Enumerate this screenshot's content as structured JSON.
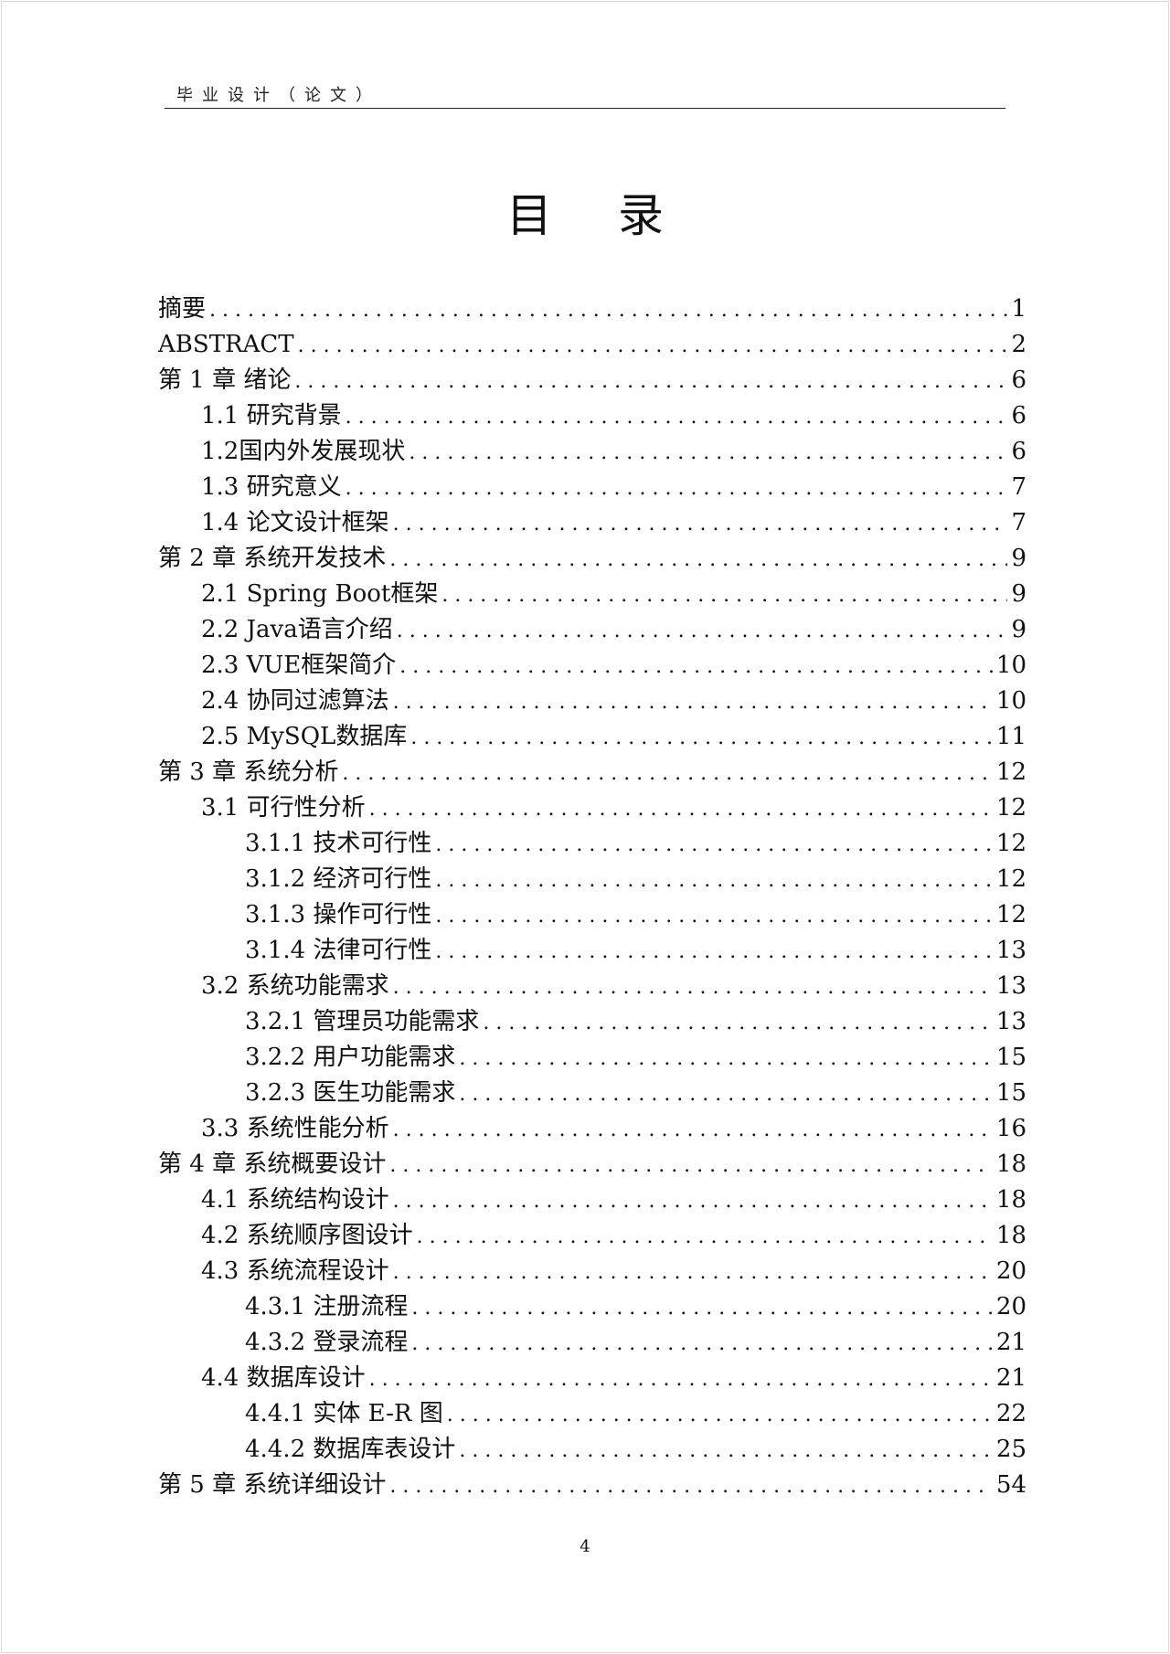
{
  "header": {
    "text": "毕业设计（论文）"
  },
  "title": "目 录",
  "toc": [
    {
      "label": "摘要",
      "page": "1",
      "level": 1
    },
    {
      "label": "ABSTRACT",
      "page": "2",
      "level": 1
    },
    {
      "label": "第 1 章 绪论",
      "page": "6",
      "level": 1
    },
    {
      "label": "1.1 研究背景",
      "page": "6",
      "level": 2
    },
    {
      "label": "1.2国内外发展现状",
      "page": "6",
      "level": 2
    },
    {
      "label": "1.3 研究意义",
      "page": "7",
      "level": 2
    },
    {
      "label": "1.4 论文设计框架",
      "page": "7",
      "level": 2
    },
    {
      "label": "第 2 章 系统开发技术",
      "page": "9",
      "level": 1
    },
    {
      "label": "2.1  Spring Boot框架",
      "page": "9",
      "level": 2
    },
    {
      "label": "2.2  Java语言介绍",
      "page": "9",
      "level": 2
    },
    {
      "label": "2.3  VUE框架简介",
      "page": "10",
      "level": 2
    },
    {
      "label": "2.4  协同过滤算法",
      "page": "10",
      "level": 2
    },
    {
      "label": "2.5  MySQL数据库",
      "page": "11",
      "level": 2
    },
    {
      "label": "第 3 章 系统分析",
      "page": "12",
      "level": 1
    },
    {
      "label": "3.1 可行性分析",
      "page": "12",
      "level": 2
    },
    {
      "label": "3.1.1 技术可行性",
      "page": "12",
      "level": 3
    },
    {
      "label": "3.1.2 经济可行性",
      "page": "12",
      "level": 3
    },
    {
      "label": "3.1.3 操作可行性",
      "page": "12",
      "level": 3
    },
    {
      "label": "3.1.4 法律可行性",
      "page": "13",
      "level": 3
    },
    {
      "label": "3.2 系统功能需求",
      "page": "13",
      "level": 2
    },
    {
      "label": "3.2.1 管理员功能需求",
      "page": "13",
      "level": 3
    },
    {
      "label": "3.2.2 用户功能需求",
      "page": "15",
      "level": 3
    },
    {
      "label": "3.2.3 医生功能需求",
      "page": "15",
      "level": 3
    },
    {
      "label": "3.3 系统性能分析",
      "page": "16",
      "level": 2
    },
    {
      "label": "第 4 章 系统概要设计",
      "page": "18",
      "level": 1
    },
    {
      "label": "4.1 系统结构设计",
      "page": "18",
      "level": 2
    },
    {
      "label": "4.2 系统顺序图设计",
      "page": "18",
      "level": 2
    },
    {
      "label": "4.3 系统流程设计",
      "page": "20",
      "level": 2
    },
    {
      "label": "4.3.1 注册流程",
      "page": "20",
      "level": 3
    },
    {
      "label": "4.3.2 登录流程",
      "page": "21",
      "level": 3
    },
    {
      "label": "4.4 数据库设计",
      "page": "21",
      "level": 2
    },
    {
      "label": "4.4.1 实体 E-R 图",
      "page": "22",
      "level": 3
    },
    {
      "label": "4.4.2 数据库表设计",
      "page": "25",
      "level": 3
    },
    {
      "label": "第 5 章 系统详细设计",
      "page": "54",
      "level": 1
    }
  ],
  "footer": {
    "page_number": "4"
  }
}
